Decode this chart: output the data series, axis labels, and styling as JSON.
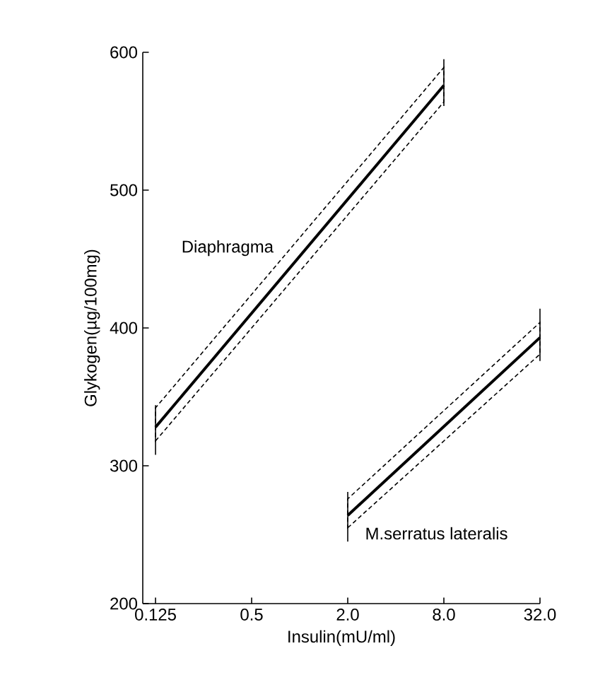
{
  "chart_data": {
    "type": "line",
    "xlabel": "Insulin(mU/ml)",
    "ylabel": "Glykogen(µg/100mg)",
    "log": "x",
    "xlim": [
      0.104,
      32
    ],
    "ylim": [
      200,
      600
    ],
    "xticks": [
      0.125,
      0.5,
      {
        "value": 2,
        "label": "2.0"
      },
      {
        "value": 8,
        "label": "8.0"
      },
      {
        "value": 32,
        "label": "32.0"
      }
    ],
    "yticks": [
      200,
      300,
      400,
      500,
      600
    ],
    "grid": false,
    "marker": "none",
    "line_style": "solid",
    "series": [
      {
        "name": "Diaphragma",
        "color": "#000000",
        "x": [
          0.125,
          8
        ],
        "values": [
          328,
          576
        ],
        "lower": [
          318,
          564
        ],
        "upper": [
          342,
          589
        ],
        "errors": [
          [
            308,
            344
          ],
          [
            561,
            595
          ]
        ]
      },
      {
        "name": "M.serratus lateralis",
        "color": "#000000",
        "x": [
          2,
          32
        ],
        "values": [
          264,
          393
        ],
        "lower": [
          255,
          381
        ],
        "upper": [
          276,
          404
        ],
        "errors": [
          [
            245,
            281
          ],
          [
            376,
            414
          ]
        ]
      }
    ]
  }
}
